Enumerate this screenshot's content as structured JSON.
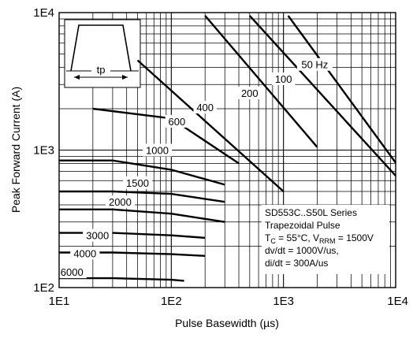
{
  "chart_data": {
    "type": "line",
    "scale": {
      "x": "log",
      "y": "log"
    },
    "grid": true,
    "xlim": [
      10,
      10000
    ],
    "ylim": [
      100,
      10000
    ],
    "xlabel": "Pulse Basewidth (µs)",
    "ylabel": "Peak Forward Current (A)",
    "x_ticks": [
      "1E1",
      "1E2",
      "1E3",
      "1E4"
    ],
    "y_ticks": [
      "1E2",
      "1E3",
      "1E4"
    ],
    "inset_label": "tp",
    "annotation": [
      "SD553C..S50L Series",
      "Trapezoidal Pulse",
      "T_C = 55°C, V_RRM = 1500V",
      "dv/dt = 1000V/us,",
      "di/dt = 300A/us"
    ],
    "series": [
      {
        "name": "50 Hz",
        "label_x": 1900,
        "label_y": 4200,
        "x": [
          1100,
          10000
        ],
        "y": [
          9500,
          810
        ]
      },
      {
        "name": "100",
        "label_x": 1000,
        "label_y": 3300,
        "x": [
          500,
          10000
        ],
        "y": [
          9500,
          650
        ]
      },
      {
        "name": "200",
        "label_x": 500,
        "label_y": 2600,
        "x": [
          200,
          2000
        ],
        "y": [
          9500,
          1050
        ]
      },
      {
        "name": "400",
        "label_x": 200,
        "label_y": 2050,
        "x": [
          50,
          1000
        ],
        "y": [
          4500,
          500
        ]
      },
      {
        "name": "600",
        "label_x": 112,
        "label_y": 1620,
        "x": [
          20,
          100,
          400
        ],
        "y": [
          2000,
          1700,
          800
        ]
      },
      {
        "name": "1000",
        "label_x": 75,
        "label_y": 1000,
        "x": [
          10,
          30,
          100,
          300
        ],
        "y": [
          840,
          840,
          720,
          560
        ]
      },
      {
        "name": "1500",
        "label_x": 50,
        "label_y": 580,
        "x": [
          10,
          30,
          100,
          300
        ],
        "y": [
          500,
          500,
          480,
          420
        ]
      },
      {
        "name": "2000",
        "label_x": 35,
        "label_y": 420,
        "x": [
          10,
          30,
          100,
          300
        ],
        "y": [
          370,
          370,
          345,
          300
        ]
      },
      {
        "name": "3000",
        "label_x": 22,
        "label_y": 240,
        "x": [
          10,
          30,
          100,
          200
        ],
        "y": [
          250,
          250,
          240,
          230
        ]
      },
      {
        "name": "4000",
        "label_x": 17,
        "label_y": 178,
        "x": [
          10,
          30,
          100,
          200
        ],
        "y": [
          180,
          180,
          175,
          170
        ]
      },
      {
        "name": "6000",
        "label_x": 13,
        "label_y": 130,
        "x": [
          10,
          30,
          100,
          130
        ],
        "y": [
          117,
          117,
          114,
          112
        ]
      }
    ]
  }
}
